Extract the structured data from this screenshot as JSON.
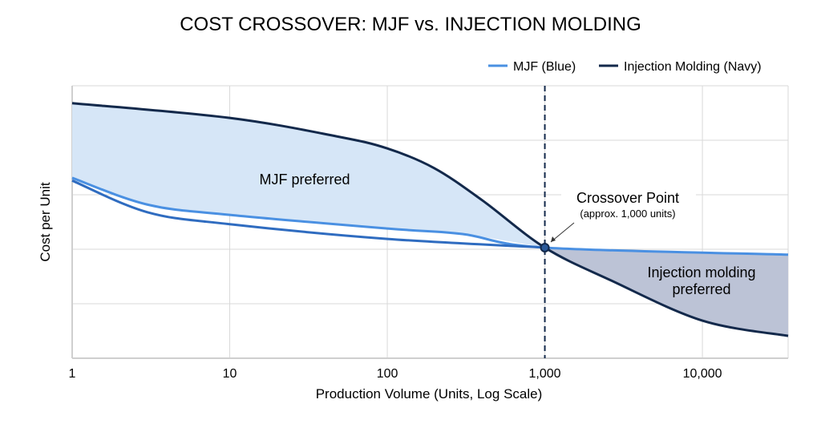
{
  "chart_data": {
    "type": "line",
    "title": "COST CROSSOVER: MJF vs. INJECTION MOLDING",
    "xlabel": "Production Volume (Units, Log Scale)",
    "ylabel": "Cost per Unit",
    "x_scale": "log",
    "xlim": [
      1,
      35000
    ],
    "ylim": [
      0,
      5
    ],
    "x_ticks": [
      1,
      10,
      100,
      1000,
      10000
    ],
    "x_tick_labels": [
      "1",
      "10",
      "100",
      "1,000",
      "10,000"
    ],
    "y_tick_labels": [],
    "grid": true,
    "legend_placement": "top-right",
    "series": [
      {
        "name": "MJF (Blue)",
        "color": "#4a90e2",
        "x": [
          1,
          3,
          10,
          100,
          300,
          1000,
          35000
        ],
        "y": [
          3.31,
          2.82,
          2.63,
          2.38,
          2.28,
          2.03,
          1.9
        ]
      },
      {
        "color": "#2f6cc0",
        "x": [
          1,
          3,
          10,
          100,
          1000
        ],
        "y": [
          3.26,
          2.68,
          2.46,
          2.19,
          2.03
        ]
      },
      {
        "name": "Injection Molding (Navy)",
        "color": "#13294b",
        "x": [
          1,
          10,
          48,
          100,
          198,
          400,
          1000,
          2620,
          10000,
          35000
        ],
        "y": [
          4.68,
          4.41,
          4.07,
          3.85,
          3.49,
          2.9,
          2.03,
          1.43,
          0.69,
          0.41
        ]
      }
    ],
    "annotations": {
      "crossover_title": "Crossover Point",
      "crossover_sub": "(approx. 1,000 units)",
      "crossover_x": 1000,
      "crossover_y": 2.03,
      "region_mjf": "MJF preferred",
      "region_im_line1": "Injection molding",
      "region_im_line2": "preferred"
    },
    "colors": {
      "mjf_region": "#d6e6f7",
      "im_region": "#bcc3d6",
      "grid": "#d9d9d9"
    }
  }
}
